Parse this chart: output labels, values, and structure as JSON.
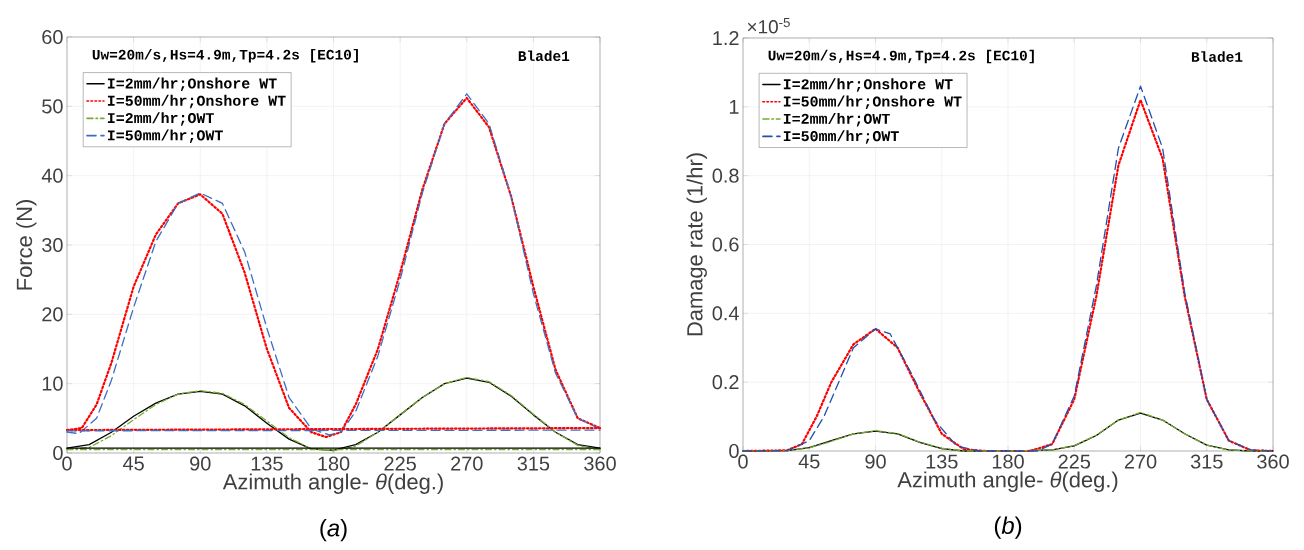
{
  "chart_data": [
    {
      "type": "line",
      "xlabel": "Azimuth angle- *θ*(deg.)",
      "ylabel": "Force (N)",
      "xlim": [
        0,
        360
      ],
      "ylim": [
        0,
        60
      ],
      "xticks": [
        0,
        45,
        90,
        135,
        180,
        225,
        270,
        315,
        360
      ],
      "yticks": [
        0,
        10,
        20,
        30,
        40,
        50,
        60
      ],
      "grid": true,
      "legend": "top left",
      "annotations": [
        "Uw=20m/s,Hs=4.9m,Tp=4.2s [EC10]",
        "Blade1",
        "(*a*)"
      ],
      "series": [
        {
          "name": "I=2mm/hr;Onshore WT",
          "color": "#000000",
          "line_style": "solid",
          "x": [
            0,
            15,
            30,
            45,
            60,
            75,
            90,
            105,
            120,
            135,
            150,
            165,
            180,
            195,
            210,
            225,
            240,
            255,
            270,
            285,
            300,
            315,
            330,
            345,
            360
          ],
          "values": [
            0.7,
            1.2,
            3,
            5.3,
            7.2,
            8.5,
            8.9,
            8.5,
            6.8,
            4.3,
            2,
            0.6,
            0.4,
            1.2,
            3,
            5.5,
            8,
            10,
            10.8,
            10.2,
            8.2,
            5.5,
            3,
            1.2,
            0.7
          ]
        },
        {
          "name": "I=50mm/hr;Onshore WT",
          "color": "#ff0000",
          "line_style": "dotted",
          "x": [
            0,
            10,
            20,
            30,
            45,
            60,
            75,
            90,
            105,
            120,
            135,
            150,
            165,
            175,
            185,
            195,
            210,
            225,
            240,
            255,
            270,
            285,
            300,
            315,
            330,
            345,
            360
          ],
          "values": [
            3.3,
            3.6,
            7,
            13,
            24,
            31.5,
            36,
            37.3,
            34.5,
            26,
            15,
            6.5,
            3,
            2.3,
            3,
            7,
            15,
            26,
            38,
            47.5,
            51.2,
            47,
            37,
            24,
            12,
            5,
            3.6
          ]
        },
        {
          "name": "I=2mm/hr;OWT",
          "color": "#77ac30",
          "line_style": "dashdot",
          "x": [
            0,
            15,
            30,
            45,
            60,
            75,
            90,
            105,
            120,
            135,
            150,
            165,
            180,
            195,
            210,
            225,
            240,
            255,
            270,
            285,
            300,
            315,
            330,
            345,
            360
          ],
          "values": [
            0.5,
            0.8,
            2.5,
            4.8,
            7,
            8.5,
            9,
            8.6,
            7,
            4.6,
            2.2,
            0.6,
            0.3,
            1,
            3,
            5.5,
            8,
            10,
            10.9,
            10.3,
            8.3,
            5.6,
            3,
            1.1,
            0.5
          ]
        },
        {
          "name": "I=50mm/hr;OWT",
          "color": "#3a6fc4",
          "line_style": "dashed",
          "x": [
            0,
            8,
            20,
            30,
            45,
            60,
            75,
            90,
            105,
            120,
            135,
            150,
            165,
            177,
            185,
            195,
            210,
            225,
            240,
            255,
            270,
            285,
            300,
            315,
            330,
            345,
            360
          ],
          "values": [
            3,
            2.8,
            5,
            10.5,
            21,
            30.5,
            36,
            37.5,
            36,
            29,
            18,
            8,
            3.5,
            2.6,
            3,
            6,
            14,
            25,
            37.5,
            47.5,
            51.8,
            47.5,
            37,
            23,
            11.5,
            5,
            3.5
          ]
        },
        {
          "color": "#000000",
          "line_style": "solid",
          "x": [
            0,
            360
          ],
          "values": [
            0.7,
            0.7
          ]
        },
        {
          "color": "#ff0000",
          "line_style": "dotted",
          "x": [
            0,
            360
          ],
          "values": [
            3.3,
            3.6
          ]
        },
        {
          "color": "#77ac30",
          "line_style": "dashdot",
          "x": [
            0,
            360
          ],
          "values": [
            0.5,
            0.5
          ]
        },
        {
          "color": "#3a6fc4",
          "line_style": "dashed",
          "x": [
            0,
            360
          ],
          "values": [
            3.2,
            3.3
          ]
        }
      ]
    },
    {
      "type": "line",
      "xlabel": "Azimuth angle- *θ*(deg.)",
      "ylabel": "Damage rate (1/hr)",
      "xlim": [
        0,
        360
      ],
      "ylim": [
        0,
        1.2
      ],
      "xticks": [
        0,
        45,
        90,
        135,
        180,
        225,
        270,
        315,
        360
      ],
      "yticks": [
        0,
        0.2,
        0.4,
        0.6,
        0.8,
        1,
        1.2
      ],
      "grid": true,
      "legend": "top left",
      "annotations": [
        "Uw=20m/s,Hs=4.9m,Tp=4.2s [EC10]",
        "Blade1",
        "(*b*)",
        "×10$^{-5}$"
      ],
      "series": [
        {
          "name": "I=2mm/hr;Onshore WT",
          "color": "#000000",
          "line_style": "solid",
          "x": [
            0,
            30,
            45,
            60,
            75,
            90,
            105,
            120,
            135,
            150,
            180,
            210,
            225,
            240,
            255,
            270,
            285,
            300,
            315,
            330,
            345,
            360
          ],
          "values": [
            0,
            0.001,
            0.01,
            0.03,
            0.05,
            0.058,
            0.05,
            0.025,
            0.007,
            0,
            0,
            0.003,
            0.015,
            0.045,
            0.09,
            0.11,
            0.09,
            0.05,
            0.017,
            0.003,
            0,
            0
          ]
        },
        {
          "name": "I=50mm/hr;Onshore WT",
          "color": "#ff0000",
          "line_style": "dotted",
          "x": [
            0,
            30,
            40,
            50,
            60,
            75,
            90,
            105,
            120,
            135,
            150,
            165,
            195,
            210,
            225,
            240,
            255,
            270,
            285,
            300,
            315,
            330,
            345,
            360
          ],
          "values": [
            0,
            0.002,
            0.02,
            0.1,
            0.2,
            0.31,
            0.355,
            0.3,
            0.17,
            0.05,
            0.005,
            0,
            0,
            0.02,
            0.15,
            0.45,
            0.83,
            1.02,
            0.85,
            0.45,
            0.15,
            0.03,
            0.002,
            0
          ]
        },
        {
          "name": "I=2mm/hr;OWT",
          "color": "#77ac30",
          "line_style": "dashdot",
          "x": [
            0,
            30,
            45,
            60,
            75,
            90,
            105,
            120,
            135,
            150,
            180,
            210,
            225,
            240,
            255,
            270,
            285,
            300,
            315,
            330,
            345,
            360
          ],
          "values": [
            0,
            0.001,
            0.009,
            0.028,
            0.05,
            0.059,
            0.051,
            0.026,
            0.008,
            0,
            0,
            0.003,
            0.016,
            0.046,
            0.09,
            0.112,
            0.09,
            0.05,
            0.017,
            0.003,
            0,
            0
          ]
        },
        {
          "name": "I=50mm/hr;OWT",
          "color": "#2050b0",
          "line_style": "dashed",
          "x": [
            0,
            30,
            45,
            55,
            65,
            75,
            90,
            100,
            115,
            130,
            145,
            160,
            200,
            210,
            225,
            240,
            255,
            270,
            285,
            300,
            315,
            330,
            345,
            360
          ],
          "values": [
            0,
            0.001,
            0.03,
            0.1,
            0.2,
            0.3,
            0.355,
            0.34,
            0.22,
            0.09,
            0.015,
            0,
            0,
            0.02,
            0.16,
            0.48,
            0.88,
            1.06,
            0.88,
            0.46,
            0.15,
            0.03,
            0.003,
            0
          ]
        }
      ]
    }
  ]
}
